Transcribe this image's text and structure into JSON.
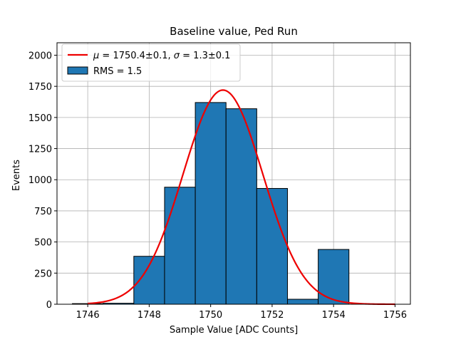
{
  "chart_data": {
    "type": "bar",
    "title": "Baseline value, Ped Run",
    "xlabel": "Sample Value [ADC Counts]",
    "ylabel": "Events",
    "xlim": [
      1745,
      1756.5
    ],
    "ylim": [
      0,
      2100
    ],
    "xticks": [
      1746,
      1748,
      1750,
      1752,
      1754,
      1756
    ],
    "yticks": [
      0,
      250,
      500,
      750,
      1000,
      1250,
      1500,
      1750,
      2000
    ],
    "grid": true,
    "legend_position": "top-left",
    "histogram": {
      "name": "RMS = 1.5",
      "color": "#1f77b4",
      "bins": [
        {
          "x0": 1745.5,
          "x1": 1746.5,
          "value": 5
        },
        {
          "x0": 1746.5,
          "x1": 1747.5,
          "value": 8
        },
        {
          "x0": 1747.5,
          "x1": 1748.5,
          "value": 385
        },
        {
          "x0": 1748.5,
          "x1": 1749.5,
          "value": 940
        },
        {
          "x0": 1749.5,
          "x1": 1750.5,
          "value": 1620
        },
        {
          "x0": 1750.5,
          "x1": 1751.5,
          "value": 1570
        },
        {
          "x0": 1751.5,
          "x1": 1752.5,
          "value": 930
        },
        {
          "x0": 1752.5,
          "x1": 1753.5,
          "value": 40
        },
        {
          "x0": 1753.5,
          "x1": 1754.5,
          "value": 440
        }
      ]
    },
    "fit": {
      "name_prefix_mu": "μ",
      "name_mu_value": " = 1750.4±0.1, ",
      "name_prefix_sigma": "σ",
      "name_sigma_value": " = 1.3±0.1",
      "color": "#ee0000",
      "mean": 1750.4,
      "sigma": 1.3,
      "amplitude": 1720,
      "x_range": [
        1746,
        1756
      ]
    }
  }
}
